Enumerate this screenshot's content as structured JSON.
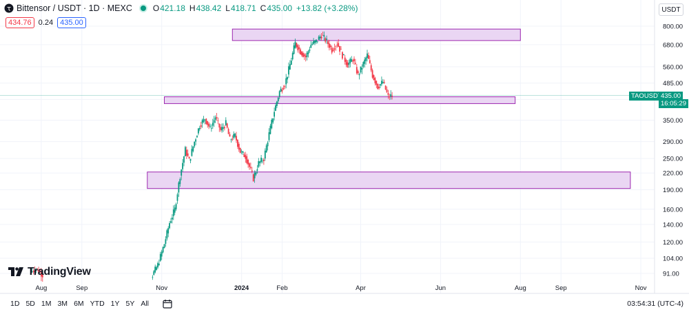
{
  "header": {
    "symbol": "Bittensor / USDT · 1D · MEXC",
    "o_label": "O",
    "o_value": "421.18",
    "h_label": "H",
    "h_value": "438.42",
    "l_label": "L",
    "l_value": "418.71",
    "c_label": "C",
    "c_value": "435.00",
    "change": "+13.82 (+3.28%)"
  },
  "quote": {
    "bid": "434.76",
    "spread": "0.24",
    "ask": "435.00"
  },
  "currency_button": "USDT",
  "brand": "TradingView",
  "price_tag": {
    "symbol": "TAOUSDT",
    "price": "435.00",
    "countdown": "16:05:29"
  },
  "timeframes": [
    "1D",
    "5D",
    "1M",
    "3M",
    "6M",
    "YTD",
    "1Y",
    "5Y",
    "All"
  ],
  "clock": "03:54:31 (UTC-4)",
  "colors": {
    "up": "#089981",
    "down": "#f23645",
    "zone_fill": "#ead6f3",
    "zone_stroke": "#9c27b0",
    "price_line": "#089981"
  },
  "chart_data": {
    "type": "candlestick",
    "symbol": "TAOUSDT",
    "timeframe": "1D",
    "y_scale": "log",
    "y_ticks": [
      91,
      104,
      120,
      140,
      160,
      190,
      220,
      250,
      290,
      350,
      420,
      485,
      560,
      680,
      800
    ],
    "x_ticks": [
      "Aug",
      "Sep",
      "Nov",
      "2024",
      "Feb",
      "Apr",
      "Jun",
      "Aug",
      "Sep",
      "Nov"
    ],
    "last_price": 435.0,
    "zones": [
      {
        "low": 705,
        "high": 780
      },
      {
        "low": 405,
        "high": 430
      },
      {
        "low": 192,
        "high": 222
      }
    ],
    "path": [
      {
        "date": "2023-07-25",
        "price": 92
      },
      {
        "date": "2023-07-29",
        "price": 95
      },
      {
        "date": "2023-08-03",
        "price": 90
      },
      {
        "date": "2023-10-25",
        "price": 88
      },
      {
        "date": "2023-10-30",
        "price": 98
      },
      {
        "date": "2023-11-04",
        "price": 118
      },
      {
        "date": "2023-11-08",
        "price": 142
      },
      {
        "date": "2023-11-12",
        "price": 160
      },
      {
        "date": "2023-11-16",
        "price": 215
      },
      {
        "date": "2023-11-20",
        "price": 270
      },
      {
        "date": "2023-11-23",
        "price": 245
      },
      {
        "date": "2023-11-27",
        "price": 290
      },
      {
        "date": "2023-12-01",
        "price": 335
      },
      {
        "date": "2023-12-05",
        "price": 355
      },
      {
        "date": "2023-12-09",
        "price": 325
      },
      {
        "date": "2023-12-13",
        "price": 360
      },
      {
        "date": "2023-12-17",
        "price": 320
      },
      {
        "date": "2023-12-21",
        "price": 340
      },
      {
        "date": "2023-12-24",
        "price": 295
      },
      {
        "date": "2023-12-28",
        "price": 305
      },
      {
        "date": "2024-01-01",
        "price": 265
      },
      {
        "date": "2024-01-05",
        "price": 255
      },
      {
        "date": "2024-01-09",
        "price": 225
      },
      {
        "date": "2024-01-11",
        "price": 210
      },
      {
        "date": "2024-01-15",
        "price": 240
      },
      {
        "date": "2024-01-19",
        "price": 250
      },
      {
        "date": "2024-01-23",
        "price": 310
      },
      {
        "date": "2024-01-27",
        "price": 380
      },
      {
        "date": "2024-01-31",
        "price": 450
      },
      {
        "date": "2024-02-04",
        "price": 480
      },
      {
        "date": "2024-02-08",
        "price": 570
      },
      {
        "date": "2024-02-12",
        "price": 690
      },
      {
        "date": "2024-02-16",
        "price": 640
      },
      {
        "date": "2024-02-20",
        "price": 610
      },
      {
        "date": "2024-02-24",
        "price": 680
      },
      {
        "date": "2024-02-28",
        "price": 700
      },
      {
        "date": "2024-03-03",
        "price": 740
      },
      {
        "date": "2024-03-07",
        "price": 700
      },
      {
        "date": "2024-03-11",
        "price": 650
      },
      {
        "date": "2024-03-15",
        "price": 690
      },
      {
        "date": "2024-03-19",
        "price": 620
      },
      {
        "date": "2024-03-23",
        "price": 570
      },
      {
        "date": "2024-03-27",
        "price": 600
      },
      {
        "date": "2024-03-31",
        "price": 520
      },
      {
        "date": "2024-04-03",
        "price": 560
      },
      {
        "date": "2024-04-07",
        "price": 620
      },
      {
        "date": "2024-04-11",
        "price": 520
      },
      {
        "date": "2024-04-15",
        "price": 470
      },
      {
        "date": "2024-04-19",
        "price": 490
      },
      {
        "date": "2024-04-23",
        "price": 430
      },
      {
        "date": "2024-04-26",
        "price": 435
      }
    ]
  }
}
